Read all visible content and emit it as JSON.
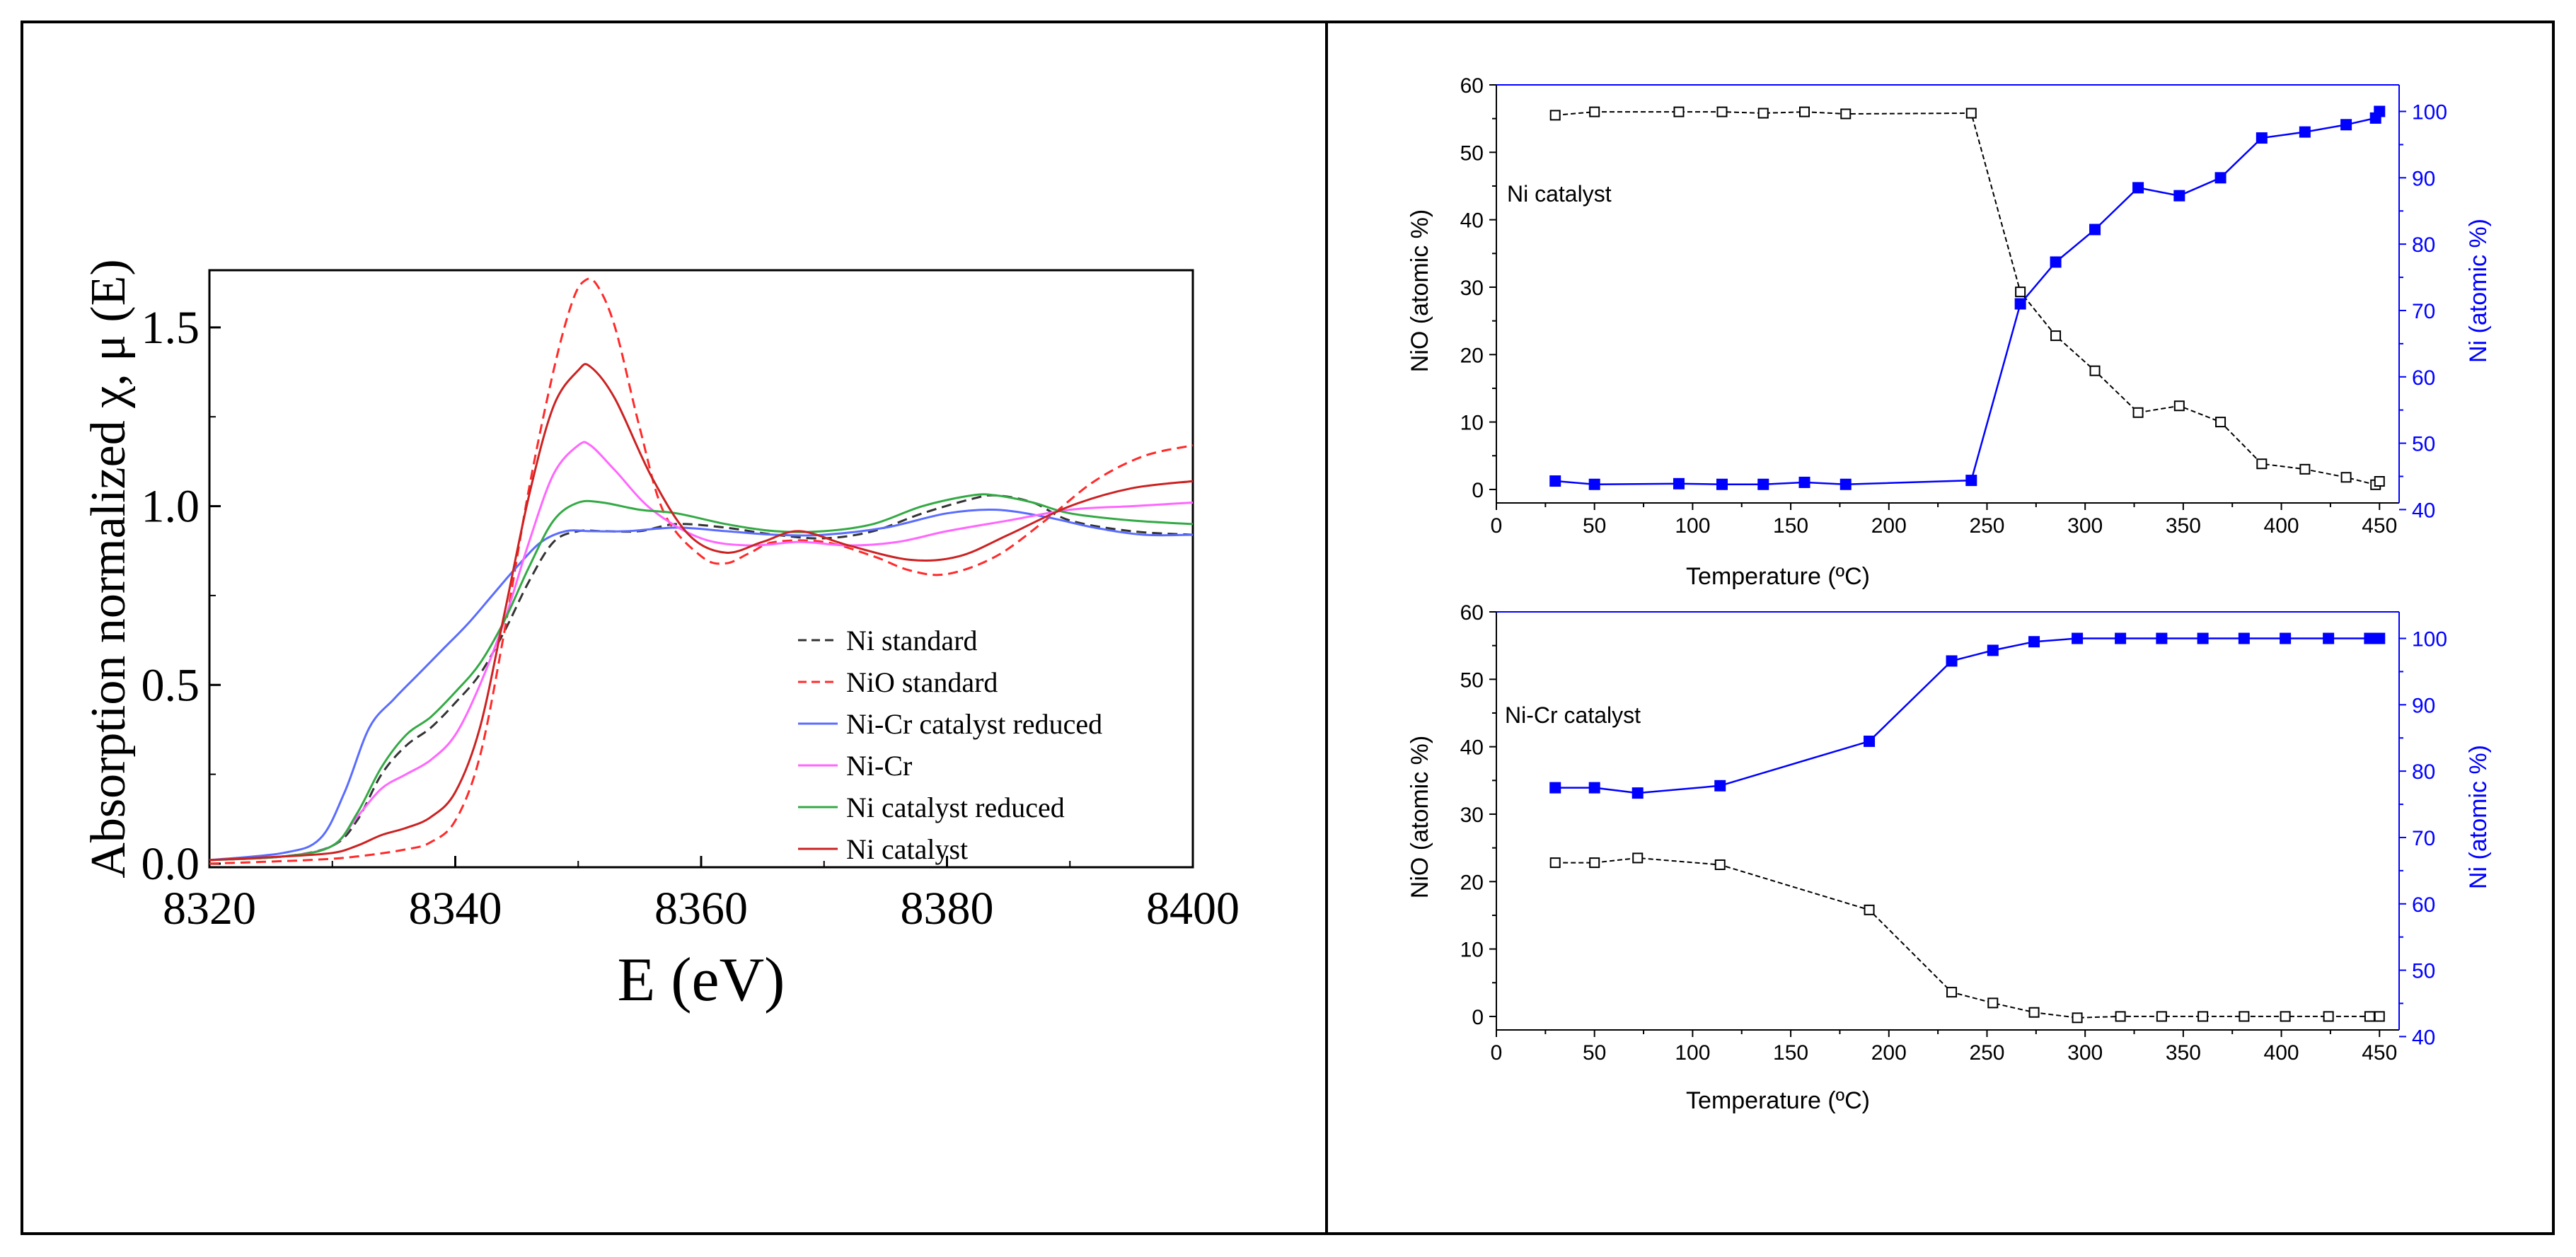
{
  "colors": {
    "frame": "#000000",
    "axis": "#000000",
    "ni_axis": "#0000ff",
    "ni_standard": "#333333",
    "nio_standard": "#ff2a2a",
    "nicr_reduced": "#5a6cff",
    "nicr": "#ff66ff",
    "ni_reduced": "#33aa44",
    "ni_catalyst": "#cc2222",
    "nio_series": "#000000",
    "ni_series": "#0000ff"
  },
  "chart_data": [
    {
      "type": "line",
      "id": "xanes",
      "xlabel": "E (eV)",
      "ylabel": "Absorption normalized χ, μ (E)",
      "xlim": [
        8320,
        8400
      ],
      "ylim": [
        -0.01,
        1.66
      ],
      "xticks": [
        "8320",
        "8340",
        "8360",
        "8380",
        "8400"
      ],
      "xtick_values": [
        8320,
        8340,
        8360,
        8380,
        8400
      ],
      "yticks": [
        "0.0",
        "0.5",
        "1.0",
        "1.5"
      ],
      "ytick_values": [
        0.0,
        0.5,
        1.0,
        1.5
      ],
      "legend_position": "bottom-right",
      "series": [
        {
          "name": "Ni standard",
          "color_key": "ni_standard",
          "dash": true,
          "x": [
            8320,
            8326,
            8330,
            8332,
            8334,
            8336,
            8338,
            8340,
            8342,
            8344,
            8346,
            8348,
            8350,
            8352,
            8355,
            8358,
            8362,
            8366,
            8370,
            8374,
            8378,
            8382,
            8384,
            8387,
            8390,
            8395,
            8400
          ],
          "y": [
            0.01,
            0.02,
            0.05,
            0.12,
            0.25,
            0.33,
            0.38,
            0.45,
            0.53,
            0.65,
            0.79,
            0.9,
            0.93,
            0.93,
            0.93,
            0.95,
            0.94,
            0.92,
            0.91,
            0.93,
            0.98,
            1.02,
            1.03,
            1.01,
            0.96,
            0.93,
            0.92
          ]
        },
        {
          "name": "NiO standard",
          "color_key": "nio_standard",
          "dash": true,
          "x": [
            8320,
            8328,
            8332,
            8336,
            8338,
            8340,
            8342,
            8344,
            8346,
            8348,
            8349.5,
            8350.5,
            8351.5,
            8353,
            8355,
            8357,
            8360,
            8362,
            8364,
            8366,
            8370,
            8374,
            8377,
            8380,
            8384,
            8388,
            8392,
            8396,
            8400
          ],
          "y": [
            0.0,
            0.01,
            0.02,
            0.04,
            0.06,
            0.12,
            0.3,
            0.65,
            1.05,
            1.38,
            1.57,
            1.63,
            1.62,
            1.5,
            1.22,
            0.98,
            0.86,
            0.84,
            0.87,
            0.9,
            0.9,
            0.86,
            0.82,
            0.81,
            0.86,
            0.96,
            1.07,
            1.14,
            1.17
          ]
        },
        {
          "name": "Ni-Cr catalyst reduced",
          "color_key": "nicr_reduced",
          "dash": false,
          "x": [
            8320,
            8326,
            8329,
            8331,
            8333,
            8335,
            8337,
            8339,
            8341,
            8343,
            8345,
            8347,
            8349,
            8351,
            8354,
            8358,
            8362,
            8366,
            8370,
            8375,
            8380,
            8384,
            8388,
            8392,
            8396,
            8400
          ],
          "y": [
            0.01,
            0.03,
            0.07,
            0.2,
            0.38,
            0.46,
            0.53,
            0.6,
            0.67,
            0.75,
            0.83,
            0.9,
            0.93,
            0.93,
            0.93,
            0.94,
            0.93,
            0.92,
            0.92,
            0.94,
            0.98,
            0.99,
            0.97,
            0.94,
            0.92,
            0.92
          ]
        },
        {
          "name": "Ni-Cr",
          "color_key": "nicr",
          "dash": false,
          "x": [
            8320,
            8326,
            8330,
            8332,
            8334,
            8336,
            8338,
            8340,
            8342,
            8344,
            8346,
            8348,
            8350,
            8351,
            8353,
            8356,
            8360,
            8364,
            8368,
            8372,
            8376,
            8380,
            8385,
            8390,
            8395,
            8400
          ],
          "y": [
            0.01,
            0.02,
            0.05,
            0.13,
            0.21,
            0.25,
            0.29,
            0.36,
            0.5,
            0.68,
            0.9,
            1.09,
            1.17,
            1.17,
            1.1,
            0.99,
            0.91,
            0.89,
            0.9,
            0.89,
            0.9,
            0.93,
            0.96,
            0.99,
            1.0,
            1.01
          ]
        },
        {
          "name": "Ni catalyst reduced",
          "color_key": "ni_reduced",
          "dash": false,
          "x": [
            8320,
            8326,
            8330,
            8332,
            8334,
            8336,
            8338,
            8340,
            8342,
            8344,
            8346,
            8348,
            8350,
            8352,
            8355,
            8358,
            8362,
            8366,
            8370,
            8374,
            8378,
            8382,
            8384,
            8387,
            8390,
            8395,
            8400
          ],
          "y": [
            0.01,
            0.02,
            0.05,
            0.14,
            0.27,
            0.36,
            0.41,
            0.48,
            0.56,
            0.68,
            0.83,
            0.96,
            1.01,
            1.01,
            0.99,
            0.98,
            0.95,
            0.93,
            0.93,
            0.95,
            1.0,
            1.03,
            1.03,
            1.01,
            0.98,
            0.96,
            0.95
          ]
        },
        {
          "name": "Ni catalyst",
          "color_key": "ni_catalyst",
          "dash": false,
          "x": [
            8320,
            8326,
            8330,
            8332,
            8334,
            8336,
            8338,
            8340,
            8342,
            8344,
            8346,
            8348,
            8350,
            8351,
            8353,
            8356,
            8359,
            8362,
            8365,
            8368,
            8372,
            8377,
            8381,
            8385,
            8390,
            8395,
            8400
          ],
          "y": [
            0.01,
            0.02,
            0.03,
            0.05,
            0.08,
            0.1,
            0.13,
            0.2,
            0.38,
            0.7,
            1.03,
            1.28,
            1.38,
            1.39,
            1.3,
            1.08,
            0.92,
            0.87,
            0.9,
            0.93,
            0.89,
            0.85,
            0.86,
            0.92,
            1.0,
            1.05,
            1.07
          ]
        }
      ]
    },
    {
      "type": "line",
      "id": "ni-catalyst",
      "annotation": "Ni catalyst",
      "xlabel": "Temperature (ºC)",
      "ylabel": "NiO (atomic %)",
      "y2label": "Ni (atomic %)",
      "xlim": [
        0,
        460
      ],
      "ylim": [
        -2,
        60
      ],
      "y2lim": [
        41,
        104
      ],
      "xticks": [
        "0",
        "50",
        "100",
        "150",
        "200",
        "250",
        "300",
        "350",
        "400",
        "450"
      ],
      "xtick_values": [
        0,
        50,
        100,
        150,
        200,
        250,
        300,
        350,
        400,
        450
      ],
      "yticks": [
        "0",
        "10",
        "20",
        "30",
        "40",
        "50",
        "60"
      ],
      "ytick_values": [
        0,
        10,
        20,
        30,
        40,
        50,
        60
      ],
      "y2ticks": [
        "40",
        "50",
        "60",
        "70",
        "80",
        "90",
        "100"
      ],
      "y2tick_values": [
        40,
        50,
        60,
        70,
        80,
        90,
        100
      ],
      "series": [
        {
          "name": "NiO",
          "axis": "left",
          "marker": "open-square",
          "color_key": "nio_series",
          "x": [
            30,
            50,
            93,
            115,
            136,
            157,
            178,
            242,
            267,
            285,
            305,
            327,
            348,
            369,
            390,
            412,
            433,
            448,
            450
          ],
          "y": [
            55.5,
            56,
            56,
            56,
            55.8,
            56,
            55.7,
            55.8,
            29.3,
            22.8,
            17.6,
            11.4,
            12.4,
            10,
            3.8,
            3,
            1.8,
            0.7,
            1.2
          ]
        },
        {
          "name": "Ni",
          "axis": "right",
          "marker": "filled-square",
          "color_key": "ni_series",
          "x": [
            30,
            50,
            93,
            115,
            136,
            157,
            178,
            242,
            267,
            285,
            305,
            327,
            348,
            369,
            390,
            412,
            433,
            448,
            450
          ],
          "y": [
            44.3,
            43.8,
            43.9,
            43.8,
            43.8,
            44.1,
            43.8,
            44.4,
            71,
            77.3,
            82.2,
            88.5,
            87.3,
            90,
            96,
            96.9,
            98,
            99,
            100
          ]
        }
      ]
    },
    {
      "type": "line",
      "id": "nicr-catalyst",
      "annotation": "Ni-Cr catalyst",
      "xlabel": "Temperature (ºC)",
      "ylabel": "NiO (atomic %)",
      "y2label": "Ni (atomic %)",
      "xlim": [
        0,
        460
      ],
      "ylim": [
        -2,
        60
      ],
      "y2lim": [
        41,
        104
      ],
      "xticks": [
        "0",
        "50",
        "100",
        "150",
        "200",
        "250",
        "300",
        "350",
        "400",
        "450"
      ],
      "xtick_values": [
        0,
        50,
        100,
        150,
        200,
        250,
        300,
        350,
        400,
        450
      ],
      "yticks": [
        "0",
        "10",
        "20",
        "30",
        "40",
        "50",
        "60"
      ],
      "ytick_values": [
        0,
        10,
        20,
        30,
        40,
        50,
        60
      ],
      "y2ticks": [
        "40",
        "50",
        "60",
        "70",
        "80",
        "90",
        "100"
      ],
      "y2tick_values": [
        40,
        50,
        60,
        70,
        80,
        90,
        100
      ],
      "series": [
        {
          "name": "NiO",
          "axis": "left",
          "marker": "open-square",
          "color_key": "nio_series",
          "x": [
            30,
            50,
            72,
            114,
            190,
            232,
            253,
            274,
            296,
            318,
            339,
            360,
            381,
            402,
            424,
            445,
            450
          ],
          "y": [
            22.8,
            22.8,
            23.5,
            22.5,
            15.8,
            3.6,
            2,
            0.6,
            -0.2,
            0,
            0,
            0,
            0,
            0,
            0,
            0,
            0
          ]
        },
        {
          "name": "Ni",
          "axis": "right",
          "marker": "filled-square",
          "color_key": "ni_series",
          "x": [
            30,
            50,
            72,
            114,
            190,
            232,
            253,
            274,
            296,
            318,
            339,
            360,
            381,
            402,
            424,
            445,
            450
          ],
          "y": [
            77.5,
            77.5,
            76.7,
            77.8,
            84.5,
            96.6,
            98.2,
            99.5,
            100,
            100,
            100,
            100,
            100,
            100,
            100,
            100,
            100
          ]
        }
      ]
    }
  ]
}
